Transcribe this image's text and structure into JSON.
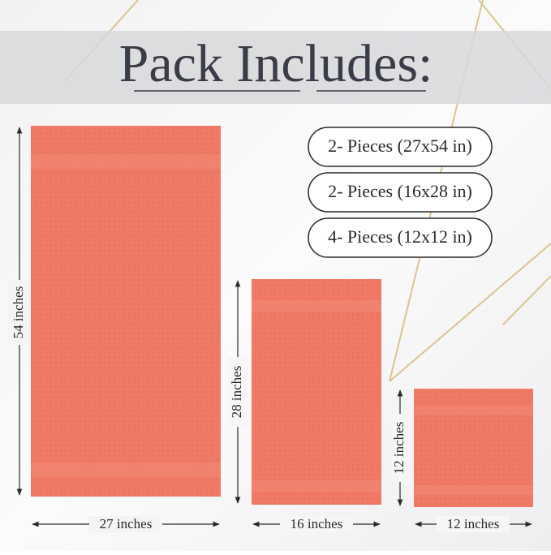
{
  "header": {
    "title": "Pack Includes:"
  },
  "pieces": [
    "2- Pieces (27x54 in)",
    "2- Pieces (16x28 in)",
    "4- Pieces (12x12 in)"
  ],
  "towels": [
    {
      "height_label": "54 inches",
      "width_label": "27 inches"
    },
    {
      "height_label": "28 inches",
      "width_label": "16 inches"
    },
    {
      "height_label": "12 inches",
      "width_label": "12 inches"
    }
  ]
}
